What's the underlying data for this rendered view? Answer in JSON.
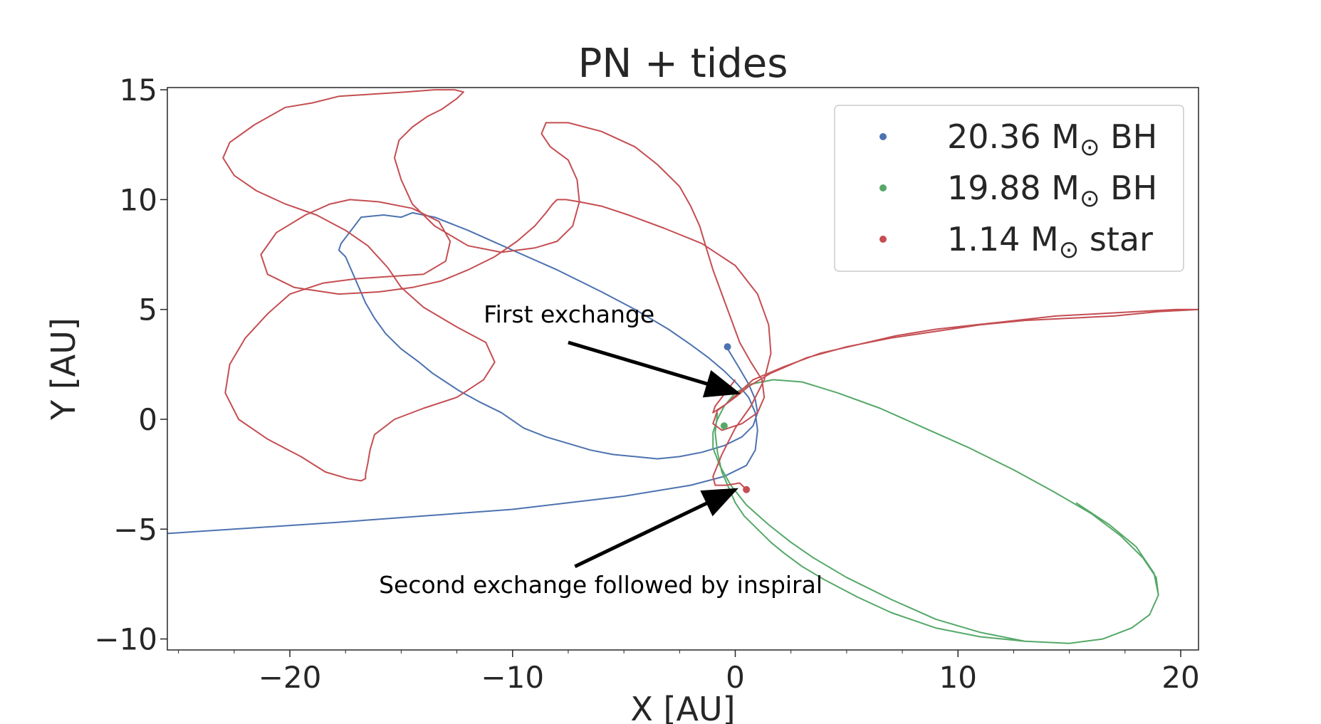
{
  "chart_data": {
    "type": "line",
    "title": "PN + tides",
    "xlabel": "X [AU]",
    "ylabel": "Y [AU]",
    "xlim": [
      -25.5,
      20.8
    ],
    "ylim": [
      -10.5,
      15.1
    ],
    "xticks": [
      -20,
      -10,
      0,
      10,
      20
    ],
    "xtick_labels": [
      "−20",
      "−10",
      "0",
      "10",
      "20"
    ],
    "yticks": [
      -10,
      -5,
      0,
      5,
      10,
      15
    ],
    "ytick_labels": [
      "−10",
      "−5",
      "0",
      "5",
      "10",
      "15"
    ],
    "grid": false,
    "legend_position": "top-right",
    "series": [
      {
        "name_prefix": "20.36 M",
        "name_suffix": " BH",
        "color": "#4c72b0",
        "x": [
          -25.5,
          -18,
          -10,
          -5,
          -2,
          -0.5,
          0.5,
          0.9,
          1.0,
          0.9,
          0.6,
          0.1,
          -0.5,
          -1.2,
          -2,
          -3,
          -4.5,
          -6,
          -8,
          -10,
          -12,
          -13.5,
          -14.5,
          -15,
          -15.8,
          -16.8,
          -17.4,
          -17.7,
          -17.8,
          -17.5,
          -17.2,
          -16.9,
          -16.6,
          -16.2,
          -15.7,
          -15,
          -14.2,
          -13.6,
          -13.0,
          -12.4,
          -11.5,
          -10.5,
          -9.5,
          -8.5,
          -7.5,
          -6.5,
          -5.5,
          -4.5,
          -3.5,
          -2.5,
          -1.5,
          -0.5,
          0.3,
          0.8,
          1.0,
          0.9,
          0.6,
          0.2,
          -0.4
        ],
        "y": [
          -5.2,
          -4.7,
          -4.1,
          -3.5,
          -3.0,
          -2.6,
          -2.1,
          -1.4,
          -0.5,
          0.3,
          1.0,
          1.6,
          2.2,
          2.8,
          3.4,
          4.1,
          5.0,
          5.8,
          6.8,
          7.7,
          8.6,
          9.2,
          9.4,
          9.2,
          9.3,
          9.2,
          8.4,
          8.0,
          7.7,
          7.4,
          6.7,
          6.0,
          5.3,
          4.6,
          3.9,
          3.2,
          2.6,
          2.1,
          1.7,
          1.3,
          0.8,
          0.3,
          -0.4,
          -0.8,
          -1.1,
          -1.4,
          -1.6,
          -1.7,
          -1.8,
          -1.7,
          -1.5,
          -1.2,
          -0.8,
          -0.3,
          0.3,
          0.9,
          1.6,
          2.3,
          3.3
        ],
        "marker_x": -0.35,
        "marker_y": 3.3
      },
      {
        "name_prefix": "19.88 M",
        "name_suffix": " BH",
        "color": "#55a868",
        "x": [
          -0.8,
          -0.9,
          -0.8,
          -0.6,
          -0.3,
          0.0,
          0.4,
          1.0,
          1.6,
          2.2,
          3.0,
          4.0,
          5.5,
          7.0,
          9.0,
          11.0,
          13.0,
          15.0,
          16.5,
          17.8,
          18.6,
          19.0,
          18.9,
          18.3,
          17.3,
          16.0,
          14.3,
          12.5,
          10.5,
          8.5,
          6.5,
          4.6,
          3.0,
          1.7,
          0.7,
          0.0,
          -0.5,
          -0.8,
          -1.0,
          -1.0,
          -0.7,
          -0.2,
          0.5,
          1.5,
          2.5,
          3.5,
          5.0,
          7.0,
          9.0,
          11.0,
          13.0,
          15.0,
          16.5,
          17.8,
          18.6,
          19.0,
          18.8,
          18.0,
          16.8,
          15.3
        ],
        "y": [
          0.3,
          -0.6,
          -1.5,
          -2.4,
          -3.1,
          -3.8,
          -4.4,
          -5.0,
          -5.6,
          -6.1,
          -6.7,
          -7.3,
          -8.1,
          -8.8,
          -9.5,
          -9.9,
          -10.1,
          -10.2,
          -10.0,
          -9.5,
          -8.9,
          -8.0,
          -7.2,
          -6.3,
          -5.3,
          -4.3,
          -3.3,
          -2.3,
          -1.3,
          -0.4,
          0.5,
          1.2,
          1.7,
          1.8,
          1.6,
          1.2,
          0.6,
          0.0,
          -0.6,
          -1.3,
          -2.1,
          -3.0,
          -3.9,
          -4.8,
          -5.6,
          -6.3,
          -7.2,
          -8.2,
          -9.1,
          -9.7,
          -10.1,
          -10.2,
          -10.0,
          -9.5,
          -8.9,
          -8.0,
          -7.0,
          -5.8,
          -4.8,
          -3.8
        ],
        "marker_x": -0.5,
        "marker_y": -0.3
      },
      {
        "name_prefix": "1.14 M",
        "name_suffix": " star",
        "color": "#c44e52",
        "x": [
          0.0,
          -0.9,
          -1.0,
          -0.4,
          0.8,
          2.2,
          3.8,
          5.5,
          7.2,
          9.0,
          10.8,
          12.6,
          14.4,
          16.2,
          18.0,
          19.8,
          20.8,
          19.0,
          17.0,
          15.0,
          13.0,
          11.0,
          9.0,
          7.0,
          5.0,
          3.2,
          1.6,
          0.6,
          0.0,
          -0.8,
          -1.0,
          -0.6,
          0.3,
          1.0,
          1.3,
          1.2,
          0.7,
          0.2,
          -0.2,
          -0.6,
          -1.0,
          -1.3,
          -1.6,
          -2.0,
          -2.5,
          -3.5,
          -4.5,
          -6.0,
          -7.5,
          -8.5,
          -8.7,
          -8.3,
          -7.5,
          -7.1,
          -7.0,
          -7.3,
          -8.0,
          -9.0,
          -10.5,
          -12.0,
          -13.5,
          -14.5,
          -15.0,
          -15.3,
          -15.1,
          -14.5,
          -13.8,
          -13.2,
          -12.5,
          -12.2,
          -12.6,
          -13.5,
          -14.8,
          -16.3,
          -17.8,
          -19.0,
          -20.2,
          -21.6,
          -22.7,
          -23.0,
          -22.5,
          -21.5,
          -20.2,
          -18.8,
          -17.5,
          -16.5,
          -15.6,
          -15.0,
          -14.0,
          -12.5,
          -11.2,
          -10.8,
          -11.3,
          -12.5,
          -14.0,
          -15.3,
          -16.2,
          -16.4,
          -16.5,
          -16.6,
          -16.6,
          -16.8,
          -17.4,
          -18.4,
          -19.5,
          -21.0,
          -22.3,
          -22.9,
          -22.7,
          -22.0,
          -21.0,
          -20.0,
          -18.5,
          -17.0,
          -15.5,
          -14.0,
          -13.0,
          -12.8,
          -13.3,
          -14.5,
          -16.0,
          -17.3,
          -18.2,
          -19.3,
          -20.6,
          -21.3,
          -21.0,
          -19.8,
          -17.8,
          -16.0,
          -14.5,
          -13.2,
          -12.0,
          -10.8,
          -9.8,
          -9.0,
          -8.5,
          -8.2,
          -8.0,
          -7.6,
          -7.0,
          -6.0,
          -4.8,
          -3.2,
          -1.5,
          0.0,
          1.0,
          1.5,
          1.6,
          1.3,
          0.7,
          0.0,
          -0.6,
          -1.0,
          -0.9,
          -0.4,
          0.2,
          0.4
        ],
        "y": [
          1.8,
          0.6,
          0.3,
          0.7,
          1.8,
          2.4,
          3.0,
          3.4,
          3.8,
          4.1,
          4.3,
          4.5,
          4.7,
          4.8,
          4.9,
          5.0,
          5.0,
          4.9,
          4.7,
          4.6,
          4.5,
          4.3,
          4.0,
          3.7,
          3.3,
          2.8,
          2.1,
          1.5,
          1.0,
          0.4,
          -0.2,
          -0.5,
          -0.2,
          0.3,
          1.0,
          1.8,
          2.6,
          3.5,
          4.6,
          5.7,
          6.8,
          7.8,
          8.8,
          9.7,
          10.6,
          11.6,
          12.4,
          13.1,
          13.5,
          13.5,
          13.0,
          12.4,
          11.8,
          10.9,
          9.9,
          8.8,
          8.1,
          7.8,
          7.6,
          7.9,
          8.8,
          9.8,
          10.9,
          11.9,
          12.7,
          13.3,
          13.8,
          14.1,
          14.6,
          14.9,
          15.0,
          15.0,
          14.9,
          14.8,
          14.7,
          14.4,
          14.2,
          13.4,
          12.6,
          11.9,
          11.1,
          10.4,
          9.8,
          9.3,
          8.6,
          7.9,
          6.9,
          6.0,
          5.1,
          4.2,
          3.5,
          2.6,
          1.8,
          1.0,
          0.5,
          0.0,
          -0.7,
          -1.4,
          -2.0,
          -2.5,
          -2.7,
          -2.8,
          -2.7,
          -2.4,
          -1.7,
          -0.9,
          0.0,
          1.2,
          2.5,
          3.7,
          4.8,
          5.7,
          6.2,
          6.4,
          6.5,
          6.6,
          7.2,
          8.1,
          9.0,
          9.6,
          9.9,
          10.0,
          9.8,
          9.3,
          8.5,
          7.5,
          6.6,
          6.0,
          5.7,
          5.8,
          6.0,
          6.3,
          6.8,
          7.4,
          8.1,
          8.8,
          9.4,
          9.8,
          10.0,
          10.0,
          9.9,
          9.7,
          9.3,
          8.7,
          8.0,
          7.0,
          5.7,
          4.3,
          3.0,
          1.8,
          0.6,
          -0.4,
          -1.6,
          -2.6,
          -3.0,
          -3.0,
          -2.9,
          -3.1
        ],
        "marker_x": 0.5,
        "marker_y": -3.2
      }
    ],
    "annotations": [
      {
        "text": "First exchange",
        "text_x": -11.3,
        "text_y": 4.4,
        "arrow_from_x": -7.5,
        "arrow_from_y": 3.5,
        "arrow_to_x": 0.1,
        "arrow_to_y": 1.2
      },
      {
        "text": "Second exchange followed by inspiral",
        "text_x": -16.0,
        "text_y": -7.9,
        "arrow_from_x": -7.2,
        "arrow_from_y": -6.7,
        "arrow_to_x": 0.0,
        "arrow_to_y": -3.2
      }
    ],
    "legend_symbol": "⊙"
  }
}
